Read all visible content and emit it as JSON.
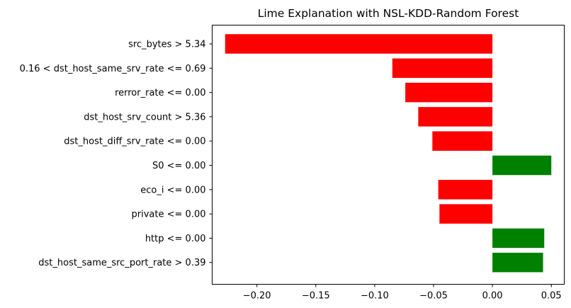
{
  "chart_data": {
    "type": "bar",
    "orientation": "horizontal",
    "title": "Lime Explanation with NSL-KDD-Random Forest",
    "xlabel": "",
    "ylabel": "",
    "categories": [
      "src_bytes > 5.34",
      "0.16 < dst_host_same_srv_rate <= 0.69",
      "rerror_rate <= 0.00",
      "dst_host_srv_count > 5.36",
      "dst_host_diff_srv_rate <= 0.00",
      "S0 <= 0.00",
      "eco_i <= 0.00",
      "private <= 0.00",
      "http <= 0.00",
      "dst_host_same_src_port_rate > 0.39"
    ],
    "values": [
      -0.227,
      -0.085,
      -0.074,
      -0.063,
      -0.051,
      0.05,
      -0.046,
      -0.045,
      0.044,
      0.043
    ],
    "xlim": [
      -0.238,
      0.061
    ],
    "xticks": [
      -0.2,
      -0.15,
      -0.1,
      -0.05,
      0.0,
      0.05
    ],
    "xtick_labels": [
      "−0.20",
      "−0.15",
      "−0.10",
      "−0.05",
      "0.00",
      "0.05"
    ],
    "colors": {
      "positive": "#008000",
      "negative": "#ff0000"
    },
    "grid": false,
    "legend": "none"
  }
}
